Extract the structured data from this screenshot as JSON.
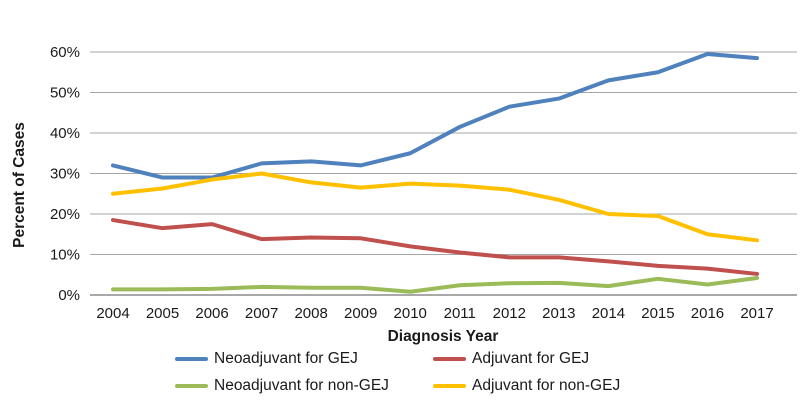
{
  "chart_data": {
    "type": "line",
    "title": "",
    "xlabel": "Diagnosis Year",
    "ylabel": "Percent of Cases",
    "x": [
      2004,
      2005,
      2006,
      2007,
      2008,
      2009,
      2010,
      2011,
      2012,
      2013,
      2014,
      2015,
      2016,
      2017
    ],
    "series": [
      {
        "name": "Neoadjuvant for GEJ",
        "color": "#4F81BD",
        "values": [
          32,
          29,
          29,
          32.5,
          33,
          32,
          35,
          41.5,
          46.5,
          48.5,
          53,
          55,
          59.5,
          58.5
        ]
      },
      {
        "name": "Adjuvant for GEJ",
        "color": "#C0504D",
        "values": [
          18.5,
          16.5,
          17.5,
          13.8,
          14.2,
          14,
          12,
          10.5,
          9.3,
          9.3,
          8.3,
          7.2,
          6.5,
          5.2
        ]
      },
      {
        "name": "Neoadjuvant for non-GEJ",
        "color": "#9BBB59",
        "values": [
          1.4,
          1.4,
          1.5,
          2,
          1.8,
          1.8,
          0.8,
          2.4,
          2.9,
          3,
          2.2,
          4,
          2.6,
          4.2
        ]
      },
      {
        "name": "Adjuvant for non-GEJ",
        "color": "#FFC000",
        "values": [
          25,
          26.3,
          28.5,
          30,
          27.8,
          26.5,
          27.5,
          27,
          26,
          23.5,
          20,
          19.5,
          15,
          13.5
        ]
      }
    ],
    "ylim": [
      0,
      60
    ],
    "yticks": [
      0,
      10,
      20,
      30,
      40,
      50,
      60
    ],
    "ytick_suffix": "%",
    "grid": true,
    "legend_position": "bottom",
    "gridline_color": "#A6A6A6",
    "axis_line_color": "#8C8C8C",
    "tick_label_color": "#1a1a1a"
  },
  "legend": {
    "rows": [
      [
        {
          "series_index": 0
        },
        {
          "series_index": 1
        }
      ],
      [
        {
          "series_index": 2
        },
        {
          "series_index": 3
        }
      ]
    ]
  }
}
